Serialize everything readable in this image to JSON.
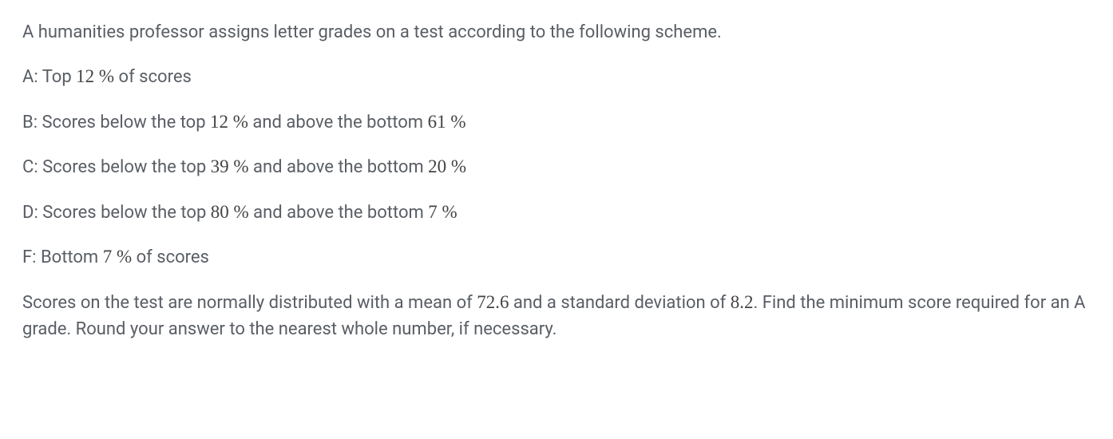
{
  "text_color": "#595e65",
  "math_color": "#444444",
  "background_color": "#ffffff",
  "font_size_body": 22,
  "font_size_math": 23,
  "intro": "A humanities professor assigns letter grades on a test according to the following scheme.",
  "grades": {
    "a": {
      "prefix": "A: Top ",
      "val1": "12 %",
      "suffix": "  of scores"
    },
    "b": {
      "prefix": "B: Scores below the top ",
      "val1": "12 %",
      "mid": "  and above the bottom ",
      "val2": "61 %"
    },
    "c": {
      "prefix": "C: Scores below the top ",
      "val1": "39 %",
      "mid": "  and above the bottom ",
      "val2": "20 %"
    },
    "d": {
      "prefix": "D: Scores below the top ",
      "val1": "80 %",
      "mid": "  and above the bottom ",
      "val2": "7 %"
    },
    "f": {
      "prefix": "F: Bottom ",
      "val1": "7 %",
      "suffix": "  of scores"
    }
  },
  "question": {
    "part1": "Scores on the test are normally distributed with a mean of ",
    "mean": "72.6",
    "part2": " and a standard deviation of ",
    "sd": "8.2",
    "part3": ". Find the minimum score required for an A grade. Round your answer to the nearest whole number, if necessary."
  }
}
